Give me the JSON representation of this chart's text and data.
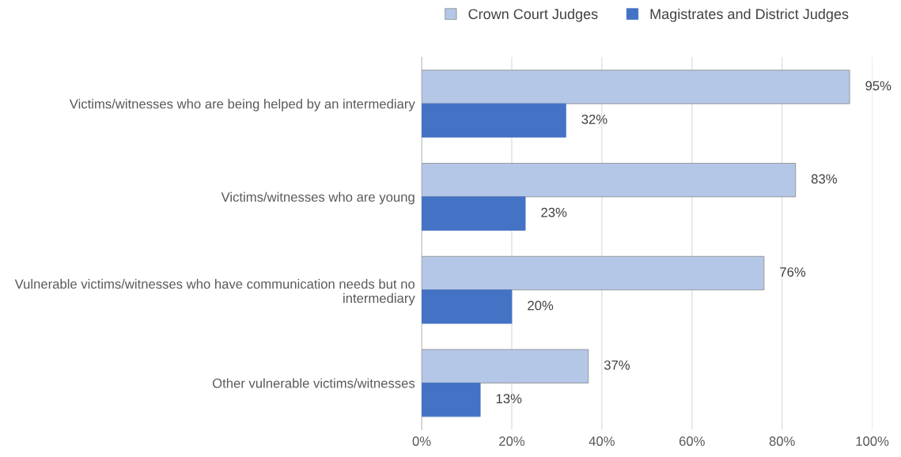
{
  "chart_data": {
    "type": "bar",
    "orientation": "horizontal",
    "categories": [
      "Victims/witnesses who are being helped by an intermediary",
      "Victims/witnesses who are young",
      "Vulnerable victims/witnesses who have communication needs but no intermediary",
      "Other vulnerable victims/witnesses"
    ],
    "series": [
      {
        "name": "Crown Court Judges",
        "color": "#b4c7e7",
        "values": [
          95,
          83,
          76,
          37
        ],
        "value_labels": [
          "95%",
          "83%",
          "76%",
          "37%"
        ]
      },
      {
        "name": "Magistrates and District Judges",
        "color": "#4472c4",
        "values": [
          32,
          23,
          20,
          13
        ],
        "value_labels": [
          "32%",
          "23%",
          "20%",
          "13%"
        ]
      }
    ],
    "xlim": [
      0,
      100
    ],
    "xticks": [
      {
        "value": 0,
        "label": "0%"
      },
      {
        "value": 20,
        "label": "20%"
      },
      {
        "value": 40,
        "label": "40%"
      },
      {
        "value": 60,
        "label": "60%"
      },
      {
        "value": 80,
        "label": "80%"
      },
      {
        "value": 100,
        "label": "100%"
      }
    ],
    "grid": "x",
    "legend": "top"
  }
}
